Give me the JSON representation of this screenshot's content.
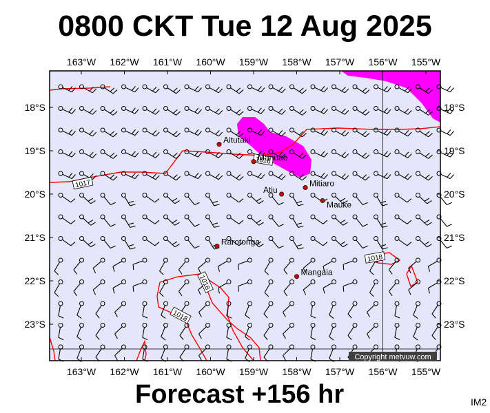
{
  "title": "0800 CKT Tue 12 Aug 2025",
  "footer": "Forecast +156 hr",
  "product_code": "IM2",
  "copyright": "Copyright metvuw.com",
  "colors": {
    "sea": "#e6e6fa",
    "isobar": "#ff0000",
    "rain": "#ff00ff",
    "place_dot": "#cc0000",
    "copyright_bg": "#404040"
  },
  "map": {
    "lon_ticks": [
      "163°W",
      "162°W",
      "161°W",
      "160°W",
      "159°W",
      "158°W",
      "157°W",
      "156°W",
      "155°W"
    ],
    "lat_ticks": [
      "18°S",
      "19°S",
      "20°S",
      "21°S",
      "22°S",
      "23°S"
    ],
    "places": [
      {
        "name": "Aitutaki",
        "lon": -159.8,
        "lat": -18.85
      },
      {
        "name": "Manuae",
        "lon": -159.0,
        "lat": -19.25
      },
      {
        "name": "Atiu",
        "lon": -158.35,
        "lat": -20.0
      },
      {
        "name": "Mitiaro",
        "lon": -157.8,
        "lat": -19.85
      },
      {
        "name": "Mauke",
        "lon": -157.4,
        "lat": -20.15
      },
      {
        "name": "Rarotonga",
        "lon": -159.85,
        "lat": -21.2
      },
      {
        "name": "Mangaia",
        "lon": -158.0,
        "lat": -21.9
      }
    ],
    "isobar_labels": [
      "1016",
      "1017",
      "1018",
      "1018",
      "1018"
    ]
  }
}
